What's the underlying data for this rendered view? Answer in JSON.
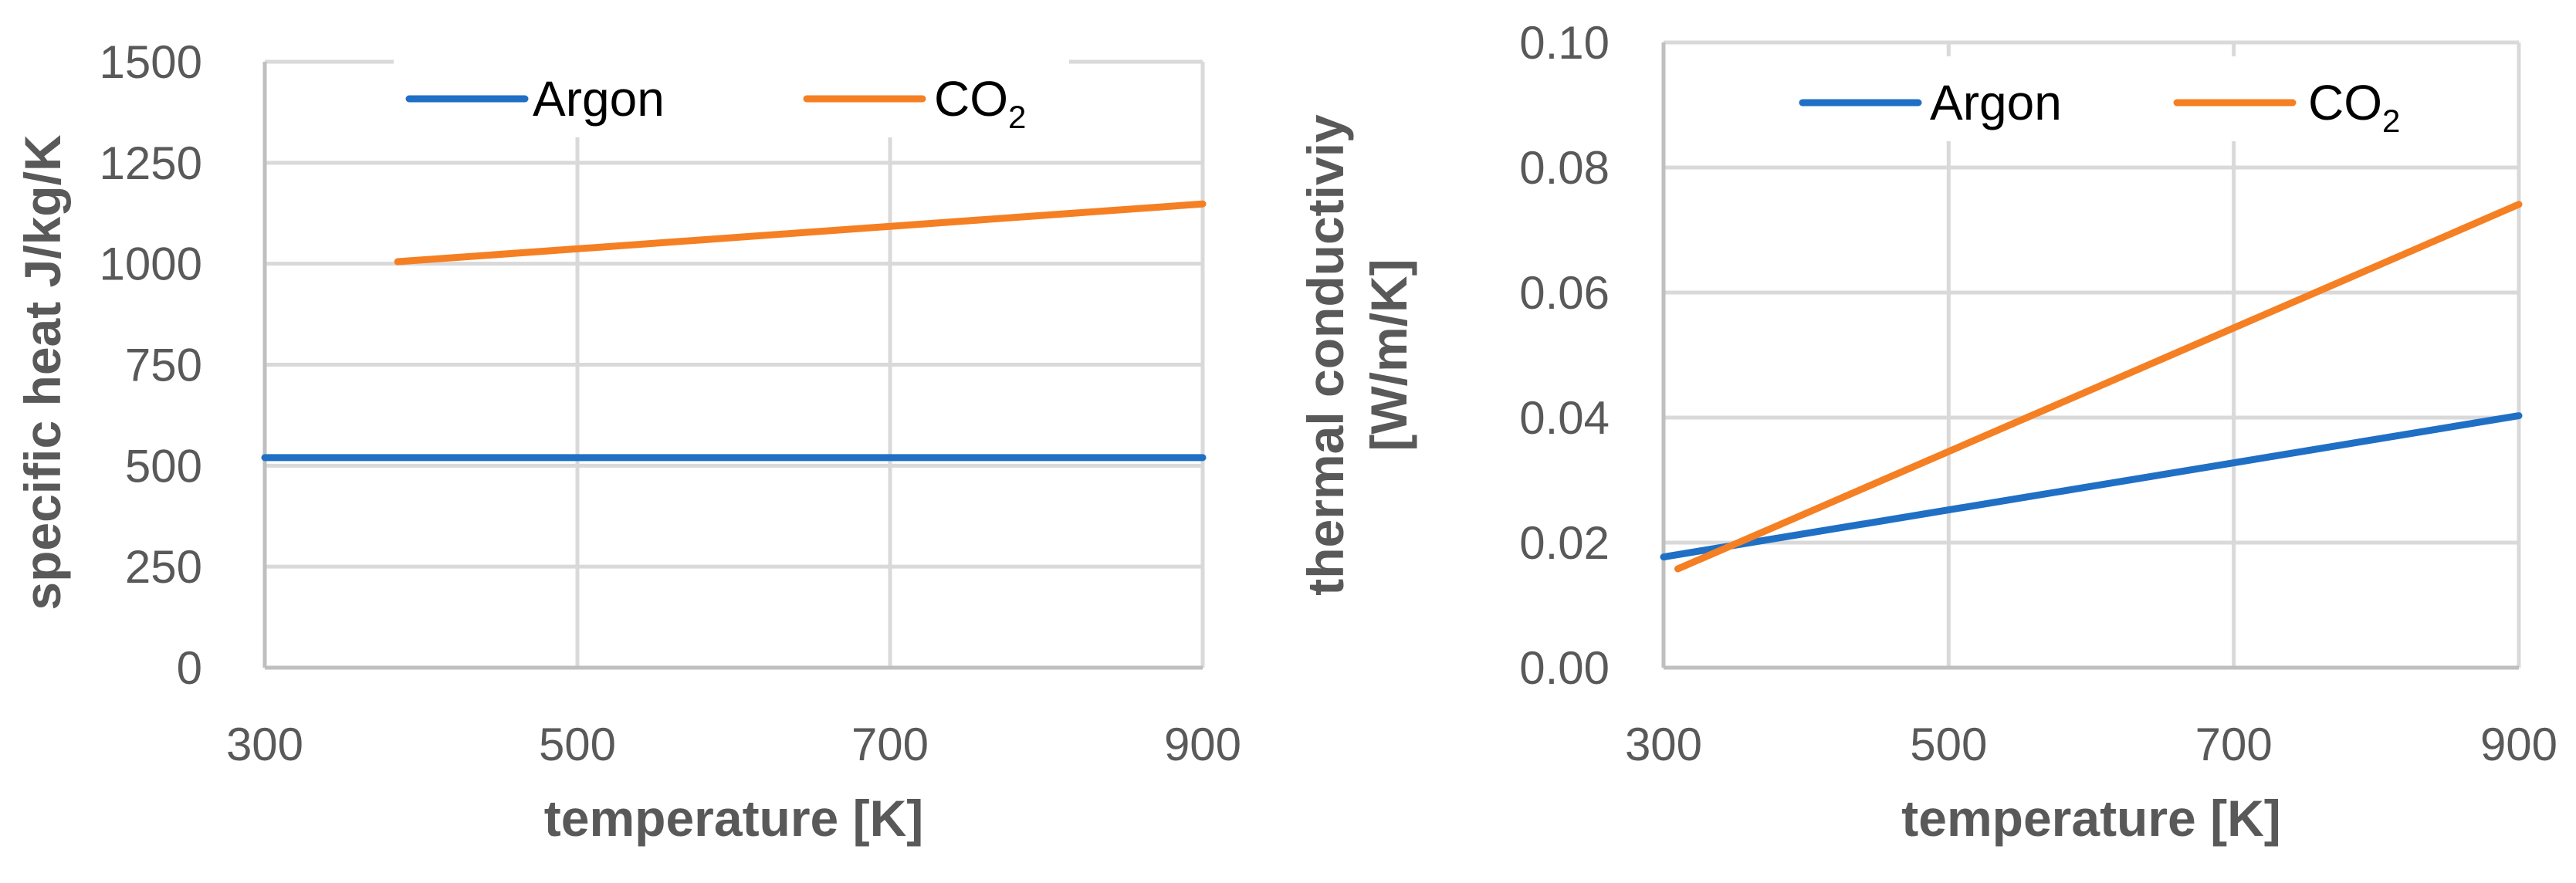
{
  "chart_data": [
    {
      "type": "line",
      "xlabel": "temperature [K]",
      "ylabel": "specific heat J/kg/K",
      "xlim": [
        300,
        900
      ],
      "ylim": [
        0,
        1500
      ],
      "xticks": [
        300,
        500,
        700,
        900
      ],
      "yticks": [
        0,
        250,
        500,
        750,
        1000,
        1250,
        1500
      ],
      "ytick_labels": [
        "0",
        "250",
        "500",
        "750",
        "1000",
        "1250",
        "1500"
      ],
      "xtick_labels": [
        "300",
        "500",
        "700",
        "900"
      ],
      "legend": {
        "position": "top-center"
      },
      "series": [
        {
          "name": "Argon",
          "color": "#1f6fc5",
          "x": [
            300,
            900
          ],
          "y": [
            520,
            520
          ]
        },
        {
          "name": "CO2",
          "name_base": "CO",
          "name_sub": "2",
          "color": "#f57f23",
          "x": [
            385,
            900
          ],
          "y": [
            1005,
            1148
          ]
        }
      ]
    },
    {
      "type": "line",
      "xlabel": "temperature [K]",
      "ylabel": "thermal conductiviy [W/m/K]",
      "ylabel_lines": [
        "thermal conductiviy",
        "[W/m/K]"
      ],
      "xlim": [
        300,
        900
      ],
      "ylim": [
        0.0,
        0.1
      ],
      "xticks": [
        300,
        500,
        700,
        900
      ],
      "yticks": [
        0.0,
        0.02,
        0.04,
        0.06,
        0.08,
        0.1
      ],
      "ytick_labels": [
        "0.00",
        "0.02",
        "0.04",
        "0.06",
        "0.08",
        "0.10"
      ],
      "xtick_labels": [
        "300",
        "500",
        "700",
        "900"
      ],
      "legend": {
        "position": "top-center"
      },
      "series": [
        {
          "name": "Argon",
          "color": "#1f6fc5",
          "x": [
            300,
            900
          ],
          "y": [
            0.0177,
            0.0403
          ]
        },
        {
          "name": "CO2",
          "name_base": "CO",
          "name_sub": "2",
          "color": "#f57f23",
          "x": [
            310,
            900
          ],
          "y": [
            0.0158,
            0.0741
          ]
        }
      ]
    }
  ]
}
